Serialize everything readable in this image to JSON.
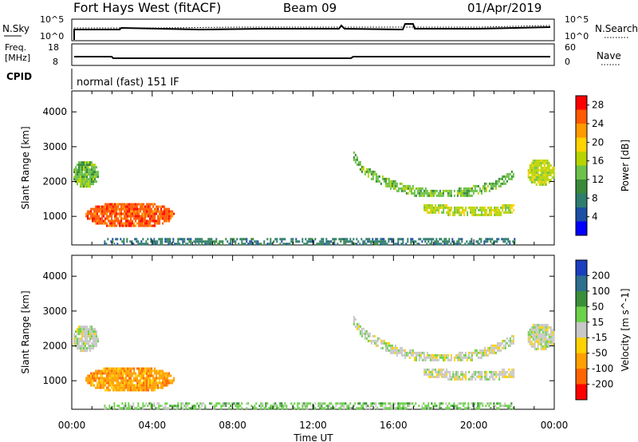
{
  "header": {
    "station": "Fort Hays West (fitACF)",
    "beam": "Beam 09",
    "date": "01/Apr/2019"
  },
  "noise_panel": {
    "left_label": "N.Sky",
    "right_label": "N.Search",
    "left_ticks": [
      "10^5",
      "10^0"
    ],
    "right_ticks": [
      "10^5",
      "10^0"
    ]
  },
  "freq_panel": {
    "left_label_1": "Freq.",
    "left_label_2": "[MHz]",
    "right_label": "Nave",
    "left_ticks": [
      "18",
      "8"
    ],
    "right_ticks": [
      "60",
      "0"
    ],
    "cpid_label": "CPID",
    "cpid_text": "normal (fast) 151 IF"
  },
  "chart_data": [
    {
      "type": "heatmap",
      "title": "",
      "xlabel": "Time UT",
      "ylabel": "Slant Range [km]",
      "ylim": [
        180,
        4600
      ],
      "xlim": [
        "00:00",
        "24:00"
      ],
      "x_ticks": [
        "00:00",
        "04:00",
        "08:00",
        "12:00",
        "16:00",
        "20:00",
        "00:00"
      ],
      "y_ticks": [
        1000,
        2000,
        3000,
        4000
      ],
      "colorbar": {
        "label": "Power [dB]",
        "ticks": [
          "4",
          "8",
          "12",
          "16",
          "20",
          "24",
          "28"
        ],
        "range": [
          0,
          30
        ],
        "colors": [
          "#0000ff",
          "#1d4fa3",
          "#2e7d6f",
          "#3a8a3a",
          "#6cc24a",
          "#b8d400",
          "#ffd200",
          "#ff9a00",
          "#ff5a00",
          "#ff0000"
        ]
      },
      "regions": [
        {
          "name": "early-patch",
          "t_start": 0.0,
          "t_end": 1.3,
          "r_start": 1850,
          "r_end": 2650,
          "level": 14
        },
        {
          "name": "main-blob",
          "t_start": 0.6,
          "t_end": 5.1,
          "r_start": 700,
          "r_end": 1450,
          "level": 25
        },
        {
          "name": "ground-band",
          "t_start": 1.6,
          "t_end": 22.0,
          "r_start": 200,
          "r_end": 380,
          "level": 8
        },
        {
          "name": "arc-upper",
          "t_start": 14.0,
          "t_end": 22.0,
          "r_start": 1600,
          "r_end": 3000,
          "level": 13
        },
        {
          "name": "arc-lower",
          "t_start": 17.5,
          "t_end": 22.0,
          "r_start": 1050,
          "r_end": 1350,
          "level": 18
        },
        {
          "name": "late-patch",
          "t_start": 22.6,
          "t_end": 24.0,
          "r_start": 1900,
          "r_end": 2700,
          "level": 16
        }
      ]
    },
    {
      "type": "heatmap",
      "title": "",
      "xlabel": "Time UT",
      "ylabel": "Slant Range [km]",
      "ylim": [
        180,
        4600
      ],
      "xlim": [
        "00:00",
        "24:00"
      ],
      "x_ticks": [
        "00:00",
        "04:00",
        "08:00",
        "12:00",
        "16:00",
        "20:00",
        "00:00"
      ],
      "y_ticks": [
        1000,
        2000,
        3000,
        4000
      ],
      "colorbar": {
        "label": "Velocity [m s^-1]",
        "ticks": [
          "200",
          "100",
          "50",
          "15",
          "-15",
          "-50",
          "-100",
          "-200"
        ],
        "colors": [
          "#1a3fbf",
          "#2e6e8f",
          "#3a8f3a",
          "#6cd24a",
          "#c8c8c8",
          "#ffd200",
          "#ffa000",
          "#ff6400",
          "#ff0000"
        ]
      },
      "regions": [
        {
          "name": "early-patch",
          "t_start": 0.0,
          "t_end": 1.3,
          "r_start": 1850,
          "r_end": 2650,
          "velocity": 0
        },
        {
          "name": "main-blob",
          "t_start": 0.6,
          "t_end": 5.1,
          "r_start": 700,
          "r_end": 1450,
          "velocity": -60
        },
        {
          "name": "ground-band",
          "t_start": 1.6,
          "t_end": 22.0,
          "r_start": 200,
          "r_end": 380,
          "velocity": 30
        },
        {
          "name": "arc-upper",
          "t_start": 14.0,
          "t_end": 22.0,
          "r_start": 1600,
          "r_end": 3000,
          "velocity": 0
        },
        {
          "name": "arc-lower",
          "t_start": 17.5,
          "t_end": 22.0,
          "r_start": 1050,
          "r_end": 1350,
          "velocity": 0
        },
        {
          "name": "late-patch",
          "t_start": 22.6,
          "t_end": 24.0,
          "r_start": 1900,
          "r_end": 2700,
          "velocity": 0
        }
      ]
    }
  ]
}
